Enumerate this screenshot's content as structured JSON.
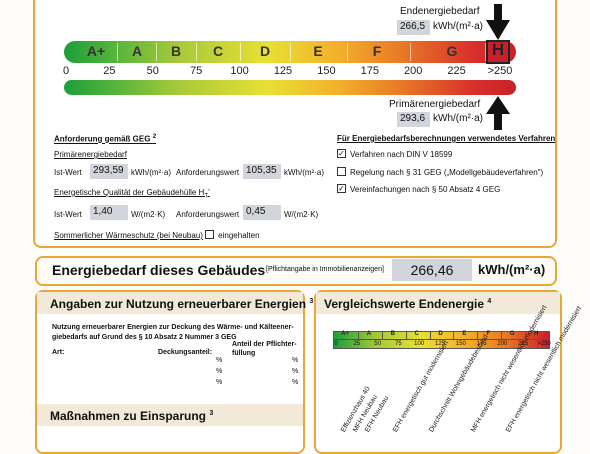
{
  "top": {
    "end_label": "Endenergiebedarf",
    "end_value": "266,5",
    "end_unit": "kWh/(m²·a)",
    "prim_label": "Primärenergiebedarf",
    "prim_value": "293,6",
    "prim_unit": "kWh/(m²·a)",
    "classes": [
      "A+",
      "A",
      "B",
      "C",
      "D",
      "E",
      "F",
      "G",
      "H"
    ],
    "ticks": [
      "0",
      "25",
      "50",
      "75",
      "100",
      "125",
      "150",
      "175",
      "200",
      "225",
      ">250"
    ]
  },
  "requirements": {
    "title": "Anforderung gemäß GEG",
    "footnote": "2",
    "primary_heading": "Primärenergiebedarf",
    "ist_label": "Ist-Wert",
    "ist_value": "293,59",
    "ist_unit": "kWh/(m²·a)",
    "anf_label": "Anforderungswert",
    "anf_value": "105,35",
    "anf_unit": "kWh/(m²·a)",
    "quality_heading": "Energetische Qualität der Gebäudehülle H",
    "quality_sub": "T",
    "quality_ist_label": "Ist-Wert",
    "quality_ist_value": "1,40",
    "quality_ist_unit": "W/(m2·K)",
    "quality_anf_label": "Anforderungswert",
    "quality_anf_value": "0,45",
    "quality_anf_unit": "W/(m2·K)",
    "summer_label": "Sommerlicher Wärmeschutz (bei Neubau)",
    "summer_check": "eingehalten"
  },
  "methods": {
    "title": "Für Energiebedarfsberechnungen verwendetes Verfahren",
    "opt1": "Verfahren nach DIN V 18599",
    "opt2": "Regelung nach § 31 GEG („Modellgebäudeverfahren\")",
    "opt3": "Vereinfachungen nach § 50 Absatz 4 GEG"
  },
  "demand": {
    "title": "Energiebedarf dieses Gebäudes",
    "note": "[Pflichtangabe in Immobilienanzeigen]",
    "value": "266,46",
    "unit": "kWh/(m²·a)"
  },
  "renewable": {
    "title": "Angaben zur Nutzung erneuerbarer Energien",
    "footnote": "3",
    "line1": "Nutzung erneuerbarer Energien zur Deckung des Wärme- und Kälteener-",
    "line2": "giebedarfs auf Grund des § 10 Absatz 2 Nummer 3 GEG",
    "col_art": "Art:",
    "col_deck": "Deckungsanteil:",
    "col_anteil": "Anteil der Pflichter-",
    "col_anteil2": "füllung",
    "pct": "%"
  },
  "measures": {
    "title": "Maßnahmen zu Einsparung",
    "footnote": "3"
  },
  "compare": {
    "title": "Vergleichswerte Endenergie",
    "footnote": "4",
    "classes": [
      "A+",
      "A",
      "B",
      "C",
      "D",
      "E",
      "F",
      "G",
      "H"
    ],
    "ticks": [
      "0",
      "25",
      "50",
      "75",
      "100",
      "125",
      "150",
      "175",
      "200",
      "225",
      ">250"
    ],
    "refs": [
      "Effizienzhaus 40",
      "MFH Neubau",
      "EFH Neubau",
      "EFH energetisch gut modernisiert",
      "Durchschnitt Wohngebäudebestand",
      "MFH energetisch nicht wesentlich modernisiert",
      "EFH energetisch nicht wesentlich modernisiert"
    ]
  },
  "colors": {
    "accent": "#e8a838",
    "value_box": "#d3d5dc"
  }
}
